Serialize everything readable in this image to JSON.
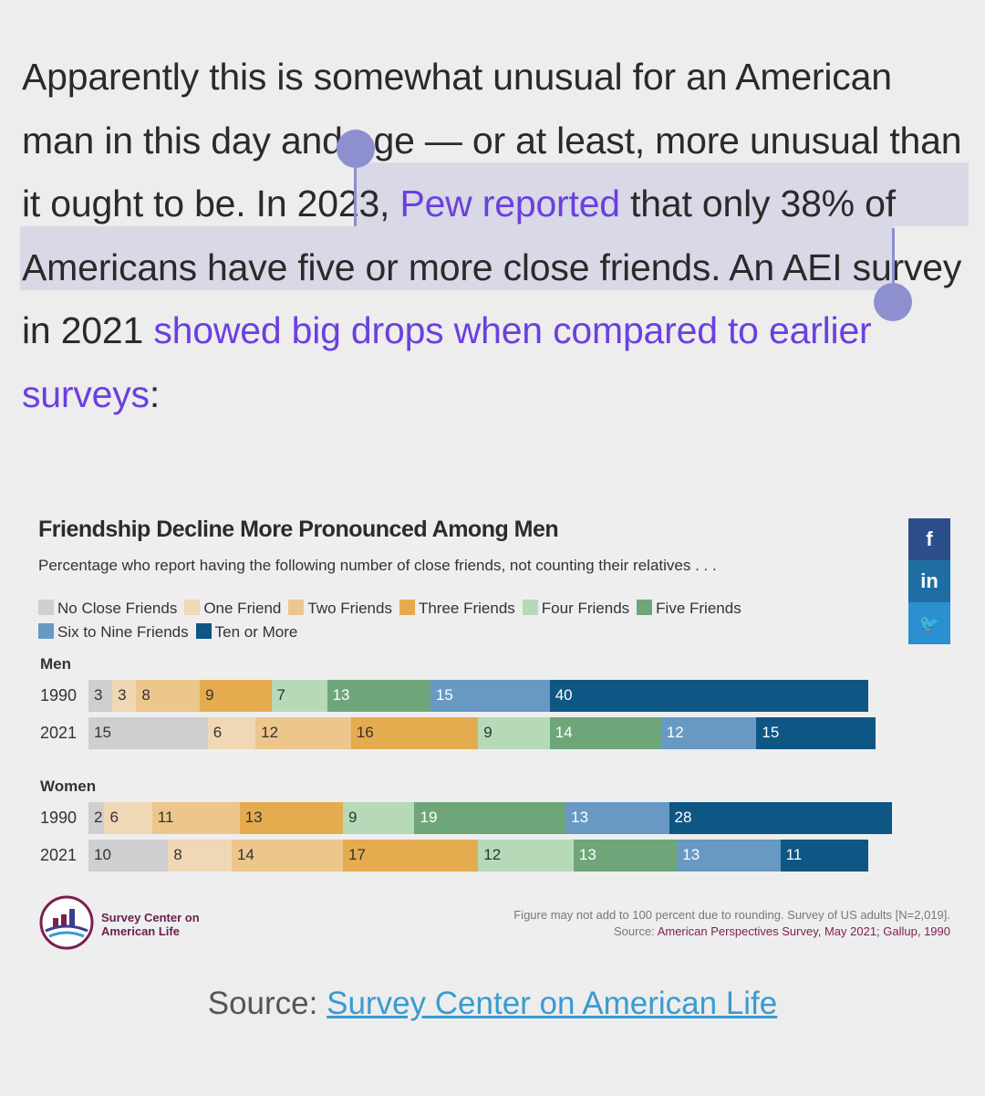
{
  "article": {
    "text_1": "Apparently this is somewhat unusual for an American man in this day and age — or at least, more unusual than it ought to be. In 2023, ",
    "link_1": "Pew reported",
    "text_2": " that only 38% of Americans have five or more close friends. An AEI survey in 2021 ",
    "link_2": "showed big drops when compared to earlier surveys",
    "text_3": ":"
  },
  "chart_data": {
    "type": "bar",
    "stacked": true,
    "orientation": "horizontal",
    "title": "Friendship Decline More Pronounced Among Men",
    "subtitle": "Percentage who report having the following number of close friends, not counting their relatives . . .",
    "series": [
      {
        "name": "No Close Friends",
        "color": "#cfcfd2"
      },
      {
        "name": "One Friend",
        "color": "#f0d7b6"
      },
      {
        "name": "Two Friends",
        "color": "#edc68c"
      },
      {
        "name": "Three Friends",
        "color": "#e4ab4f"
      },
      {
        "name": "Four Friends",
        "color": "#b6dab8"
      },
      {
        "name": "Five Friends",
        "color": "#6ea67a"
      },
      {
        "name": "Six to Nine Friends",
        "color": "#6799c3"
      },
      {
        "name": "Ten or More",
        "color": "#0e5684"
      }
    ],
    "groups": [
      {
        "name": "Men",
        "rows": [
          {
            "year": "1990",
            "values": [
              3,
              3,
              8,
              9,
              7,
              13,
              15,
              40
            ]
          },
          {
            "year": "2021",
            "values": [
              15,
              6,
              12,
              16,
              9,
              14,
              12,
              15
            ]
          }
        ]
      },
      {
        "name": "Women",
        "rows": [
          {
            "year": "1990",
            "values": [
              2,
              6,
              11,
              13,
              9,
              19,
              13,
              28
            ]
          },
          {
            "year": "2021",
            "values": [
              10,
              8,
              14,
              17,
              12,
              13,
              13,
              11
            ]
          }
        ]
      }
    ],
    "hidden_labels": [
      [
        2,
        1,
        0
      ]
    ],
    "footnote": "Figure may not add to 100 percent due to rounding. Survey of US adults [N=2,019].",
    "source_label": "Source: ",
    "source_value": "American Perspectives Survey, May 2021; Gallup, 1990",
    "org_name": "Survey Center on American Life"
  },
  "social": {
    "facebook": "f",
    "linkedin": "in",
    "twitter": "🐦"
  },
  "source_line": {
    "label": "Source: ",
    "link": "Survey Center on American Life"
  }
}
